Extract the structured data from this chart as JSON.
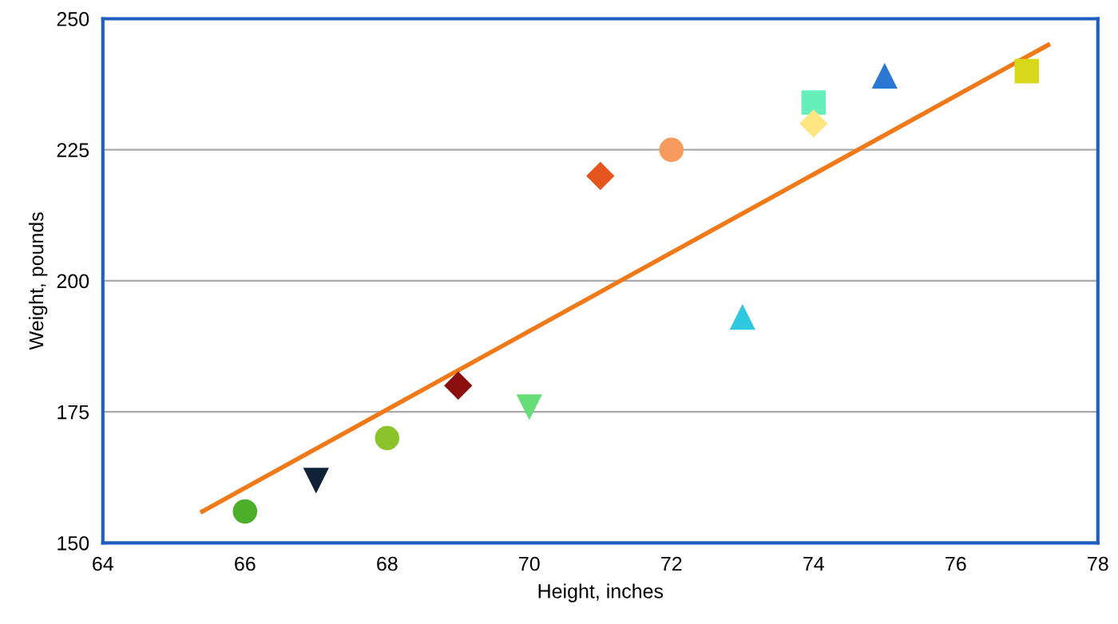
{
  "chart_data": {
    "type": "scatter",
    "xlabel": "Height, inches",
    "ylabel": "Weight, pounds",
    "xlim": [
      64,
      78
    ],
    "xticks": [
      64,
      66,
      68,
      70,
      72,
      74,
      76,
      78
    ],
    "ylim": [
      150,
      250
    ],
    "yticks": [
      150,
      175,
      200,
      225,
      250
    ],
    "grid": "y",
    "legend": false,
    "series": [
      {
        "marker": "circle",
        "color": "#4caf2a",
        "x": [
          66
        ],
        "values": [
          156
        ]
      },
      {
        "marker": "triangle_down",
        "color": "#0f2238",
        "x": [
          67
        ],
        "values": [
          162
        ]
      },
      {
        "marker": "circle",
        "color": "#8cc22a",
        "x": [
          68
        ],
        "values": [
          170
        ]
      },
      {
        "marker": "diamond",
        "color": "#8b0f0f",
        "x": [
          69
        ],
        "values": [
          180
        ]
      },
      {
        "marker": "triangle_down",
        "color": "#66dd77",
        "x": [
          70
        ],
        "values": [
          176
        ]
      },
      {
        "marker": "diamond",
        "color": "#e4561e",
        "x": [
          71
        ],
        "values": [
          220
        ]
      },
      {
        "marker": "circle",
        "color": "#f79a5e",
        "x": [
          72
        ],
        "values": [
          225
        ]
      },
      {
        "marker": "triangle",
        "color": "#2ec8e0",
        "x": [
          73
        ],
        "values": [
          193
        ]
      },
      {
        "marker": "square",
        "color": "#66eebb",
        "x": [
          74
        ],
        "values": [
          234
        ]
      },
      {
        "marker": "diamond",
        "color": "#ffe680",
        "x": [
          74
        ],
        "values": [
          230
        ]
      },
      {
        "marker": "triangle",
        "color": "#2a78d4",
        "x": [
          75
        ],
        "values": [
          239
        ]
      },
      {
        "marker": "square",
        "color": "#d8d81a",
        "x": [
          77
        ],
        "values": [
          240
        ]
      },
      {
        "type": "line",
        "line_style": "solid",
        "marker": "none",
        "color": "#f07a1a",
        "x": [
          65.4,
          77.3
        ],
        "values": [
          156,
          245
        ]
      }
    ]
  }
}
